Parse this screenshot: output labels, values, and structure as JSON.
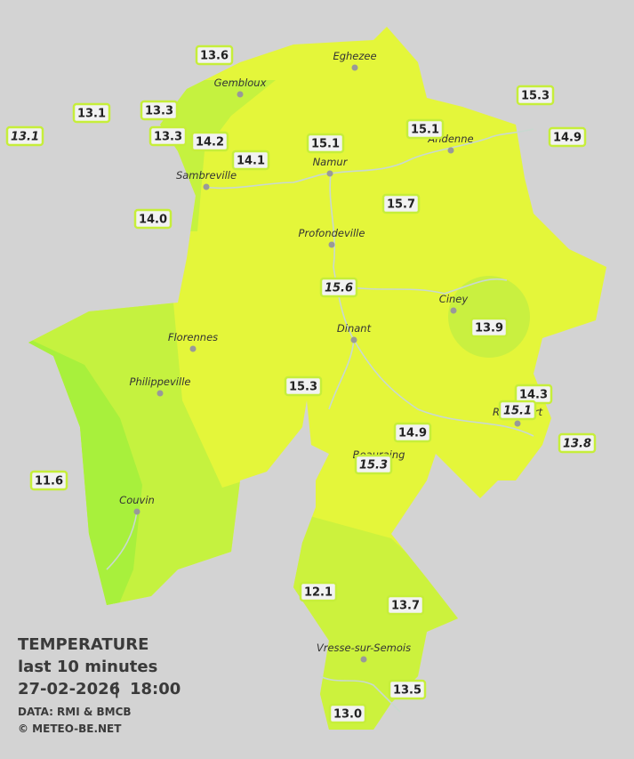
{
  "legend": {
    "title": "TEMPERATURE",
    "subtitle": "last 10 minutes",
    "date": "27-02-2026",
    "time": "18:00",
    "source": "DATA: RMI & BMCB",
    "copyright": "© METEO-BE.NET"
  },
  "cities": [
    "Eghezee",
    "Gembloux",
    "Andenne",
    "Namur",
    "Sambreville",
    "Profondeville",
    "Ciney",
    "Dinant",
    "Florennes",
    "Philippeville",
    "Rochefort",
    "Beauraing",
    "Couvin",
    "Vresse-sur-Semois"
  ],
  "stations": [
    {
      "value": 13.6
    },
    {
      "value": 13.1
    },
    {
      "value": 13.3
    },
    {
      "value": 13.1
    },
    {
      "value": 13.3
    },
    {
      "value": 14.2
    },
    {
      "value": 15.1
    },
    {
      "value": 15.1
    },
    {
      "value": 15.3
    },
    {
      "value": 14.9
    },
    {
      "value": 14.1
    },
    {
      "value": 14.0,
      "label": "14.0"
    },
    {
      "value": 15.7
    },
    {
      "value": 15.6
    },
    {
      "value": 13.9
    },
    {
      "value": 15.3
    },
    {
      "value": 14.3
    },
    {
      "value": 15.1
    },
    {
      "value": 14.9
    },
    {
      "value": 15.3
    },
    {
      "value": 13.8
    },
    {
      "value": 11.6
    },
    {
      "value": 12.1
    },
    {
      "value": 13.7
    },
    {
      "value": 13.5
    },
    {
      "value": 13.0,
      "label": "13.0"
    }
  ]
}
